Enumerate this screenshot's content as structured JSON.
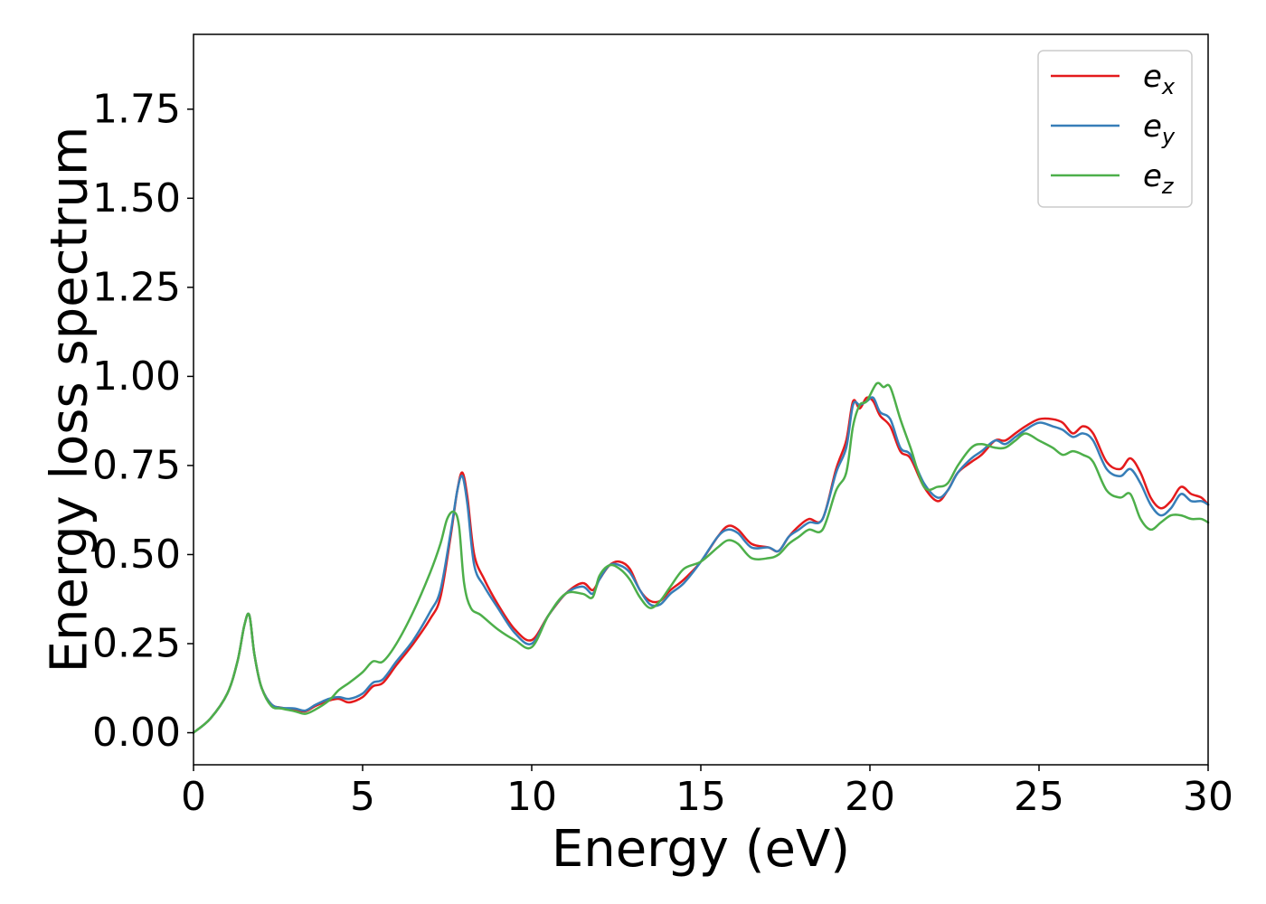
{
  "chart_data": {
    "type": "line",
    "title": "",
    "xlabel": "Energy (eV)",
    "ylabel": "Energy loss spectrum",
    "xlim": [
      0,
      30
    ],
    "ylim": [
      -0.09,
      1.96
    ],
    "xticks": [
      0,
      5,
      10,
      15,
      20,
      25,
      30
    ],
    "xtick_labels": [
      "0",
      "5",
      "10",
      "15",
      "20",
      "25",
      "30"
    ],
    "yticks": [
      0,
      0.25,
      0.5,
      0.75,
      1.0,
      1.25,
      1.5,
      1.75
    ],
    "ytick_labels": [
      "0.00",
      "0.25",
      "0.50",
      "0.75",
      "1.00",
      "1.25",
      "1.50",
      "1.75"
    ],
    "grid": false,
    "legend_position": "top-right",
    "series": [
      {
        "name": "e_x",
        "legend_base": "e",
        "legend_sub": "x",
        "color": "#e41a1c",
        "x": [
          0,
          0.5,
          1.0,
          1.3,
          1.5,
          1.65,
          1.8,
          2.0,
          2.3,
          2.6,
          3.0,
          3.3,
          3.6,
          4.0,
          4.3,
          4.6,
          5.0,
          5.3,
          5.6,
          6.0,
          6.5,
          7.0,
          7.3,
          7.6,
          7.8,
          7.95,
          8.1,
          8.3,
          8.6,
          9.0,
          9.5,
          10.0,
          10.5,
          11.0,
          11.5,
          11.8,
          12.0,
          12.3,
          12.6,
          12.9,
          13.2,
          13.5,
          13.8,
          14.1,
          14.5,
          15.0,
          15.5,
          15.8,
          16.1,
          16.5,
          17.0,
          17.3,
          17.6,
          17.9,
          18.2,
          18.6,
          19.0,
          19.3,
          19.5,
          19.7,
          19.9,
          20.1,
          20.3,
          20.6,
          20.9,
          21.2,
          21.6,
          22.0,
          22.3,
          22.6,
          23.0,
          23.3,
          23.7,
          24.0,
          24.3,
          24.6,
          25.0,
          25.4,
          25.7,
          26.0,
          26.3,
          26.6,
          27.0,
          27.4,
          27.7,
          28.0,
          28.3,
          28.6,
          28.9,
          29.2,
          29.5,
          29.8,
          30.0
        ],
        "y": [
          0,
          0.04,
          0.11,
          0.2,
          0.3,
          0.33,
          0.22,
          0.13,
          0.08,
          0.07,
          0.065,
          0.06,
          0.075,
          0.09,
          0.095,
          0.085,
          0.1,
          0.13,
          0.14,
          0.19,
          0.25,
          0.32,
          0.38,
          0.55,
          0.68,
          0.73,
          0.66,
          0.5,
          0.43,
          0.36,
          0.29,
          0.26,
          0.33,
          0.39,
          0.42,
          0.4,
          0.43,
          0.47,
          0.48,
          0.46,
          0.4,
          0.37,
          0.37,
          0.4,
          0.43,
          0.48,
          0.55,
          0.58,
          0.57,
          0.53,
          0.52,
          0.51,
          0.55,
          0.58,
          0.6,
          0.6,
          0.74,
          0.82,
          0.93,
          0.91,
          0.94,
          0.93,
          0.89,
          0.86,
          0.79,
          0.77,
          0.69,
          0.65,
          0.68,
          0.73,
          0.76,
          0.78,
          0.82,
          0.82,
          0.84,
          0.86,
          0.88,
          0.88,
          0.87,
          0.84,
          0.86,
          0.84,
          0.76,
          0.74,
          0.77,
          0.73,
          0.66,
          0.63,
          0.65,
          0.69,
          0.67,
          0.66,
          0.64
        ]
      },
      {
        "name": "e_y",
        "legend_base": "e",
        "legend_sub": "y",
        "color": "#377eb8",
        "x": [
          0,
          0.5,
          1.0,
          1.3,
          1.5,
          1.65,
          1.8,
          2.0,
          2.3,
          2.6,
          3.0,
          3.3,
          3.6,
          4.0,
          4.3,
          4.6,
          5.0,
          5.3,
          5.6,
          6.0,
          6.5,
          7.0,
          7.3,
          7.6,
          7.8,
          7.95,
          8.1,
          8.3,
          8.6,
          9.0,
          9.5,
          10.0,
          10.5,
          11.0,
          11.5,
          11.8,
          12.0,
          12.3,
          12.6,
          12.9,
          13.2,
          13.5,
          13.8,
          14.1,
          14.5,
          15.0,
          15.5,
          15.8,
          16.1,
          16.5,
          17.0,
          17.3,
          17.6,
          17.9,
          18.2,
          18.6,
          19.0,
          19.3,
          19.5,
          19.7,
          19.9,
          20.1,
          20.3,
          20.6,
          20.9,
          21.2,
          21.6,
          22.0,
          22.3,
          22.6,
          23.0,
          23.3,
          23.7,
          24.0,
          24.3,
          24.6,
          25.0,
          25.4,
          25.7,
          26.0,
          26.3,
          26.6,
          27.0,
          27.4,
          27.7,
          28.0,
          28.3,
          28.6,
          28.9,
          29.2,
          29.5,
          29.8,
          30.0
        ],
        "y": [
          0,
          0.04,
          0.11,
          0.2,
          0.3,
          0.33,
          0.22,
          0.13,
          0.08,
          0.07,
          0.068,
          0.062,
          0.078,
          0.095,
          0.1,
          0.095,
          0.11,
          0.14,
          0.15,
          0.2,
          0.26,
          0.34,
          0.4,
          0.56,
          0.68,
          0.72,
          0.64,
          0.47,
          0.41,
          0.35,
          0.28,
          0.25,
          0.33,
          0.39,
          0.41,
          0.39,
          0.43,
          0.47,
          0.47,
          0.45,
          0.4,
          0.36,
          0.36,
          0.39,
          0.42,
          0.48,
          0.55,
          0.57,
          0.56,
          0.52,
          0.52,
          0.51,
          0.55,
          0.57,
          0.59,
          0.6,
          0.73,
          0.8,
          0.92,
          0.92,
          0.93,
          0.94,
          0.9,
          0.88,
          0.8,
          0.78,
          0.7,
          0.66,
          0.68,
          0.73,
          0.77,
          0.79,
          0.82,
          0.81,
          0.83,
          0.85,
          0.87,
          0.86,
          0.85,
          0.83,
          0.84,
          0.82,
          0.74,
          0.72,
          0.74,
          0.7,
          0.64,
          0.61,
          0.63,
          0.67,
          0.65,
          0.65,
          0.64
        ]
      },
      {
        "name": "e_z",
        "legend_base": "e",
        "legend_sub": "z",
        "color": "#4daf4a",
        "x": [
          0,
          0.5,
          1.0,
          1.3,
          1.5,
          1.65,
          1.8,
          2.0,
          2.3,
          2.6,
          3.0,
          3.3,
          3.6,
          4.0,
          4.3,
          4.6,
          5.0,
          5.3,
          5.6,
          6.0,
          6.5,
          7.0,
          7.3,
          7.5,
          7.7,
          7.85,
          8.0,
          8.2,
          8.5,
          9.0,
          9.5,
          10.0,
          10.5,
          11.0,
          11.5,
          11.8,
          12.0,
          12.3,
          12.6,
          12.9,
          13.2,
          13.5,
          13.8,
          14.1,
          14.5,
          15.0,
          15.5,
          15.8,
          16.1,
          16.5,
          17.0,
          17.3,
          17.6,
          17.9,
          18.2,
          18.6,
          19.0,
          19.3,
          19.5,
          19.7,
          19.9,
          20.2,
          20.4,
          20.6,
          20.9,
          21.2,
          21.6,
          22.0,
          22.3,
          22.6,
          23.0,
          23.3,
          23.7,
          24.0,
          24.3,
          24.6,
          25.0,
          25.4,
          25.7,
          26.0,
          26.3,
          26.6,
          27.0,
          27.4,
          27.7,
          28.0,
          28.3,
          28.6,
          28.9,
          29.2,
          29.5,
          29.8,
          30.0
        ],
        "y": [
          0,
          0.04,
          0.11,
          0.2,
          0.3,
          0.33,
          0.22,
          0.13,
          0.075,
          0.068,
          0.06,
          0.053,
          0.065,
          0.09,
          0.12,
          0.14,
          0.17,
          0.2,
          0.2,
          0.25,
          0.34,
          0.45,
          0.53,
          0.6,
          0.62,
          0.58,
          0.42,
          0.35,
          0.33,
          0.29,
          0.26,
          0.24,
          0.33,
          0.39,
          0.39,
          0.38,
          0.44,
          0.47,
          0.46,
          0.43,
          0.38,
          0.35,
          0.37,
          0.41,
          0.46,
          0.48,
          0.52,
          0.54,
          0.53,
          0.49,
          0.49,
          0.5,
          0.53,
          0.55,
          0.57,
          0.57,
          0.68,
          0.73,
          0.86,
          0.92,
          0.93,
          0.98,
          0.97,
          0.97,
          0.88,
          0.8,
          0.69,
          0.69,
          0.7,
          0.75,
          0.8,
          0.81,
          0.8,
          0.8,
          0.82,
          0.84,
          0.82,
          0.8,
          0.78,
          0.79,
          0.78,
          0.76,
          0.68,
          0.66,
          0.67,
          0.6,
          0.57,
          0.59,
          0.61,
          0.61,
          0.6,
          0.6,
          0.59
        ]
      }
    ]
  }
}
